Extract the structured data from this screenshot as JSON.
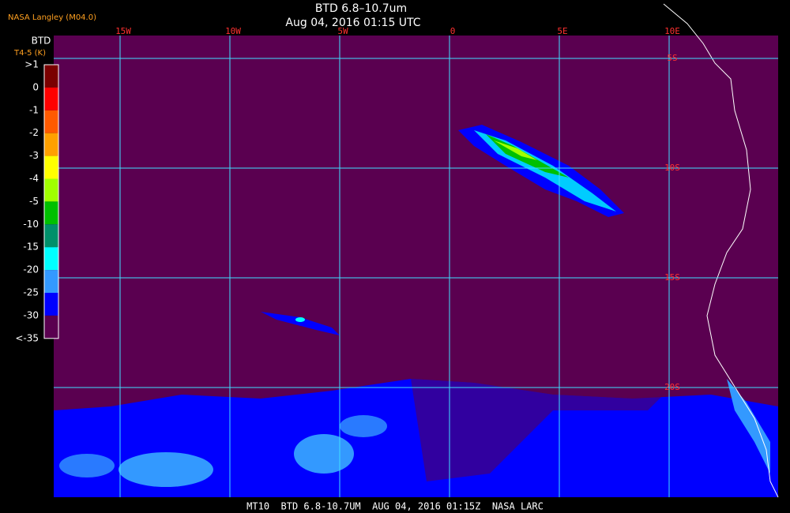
{
  "header": {
    "source": "NASA Langley (M04.0)",
    "title": "BTD 6.8–10.7um",
    "subtitle": "Aug 04, 2016 01:15 UTC"
  },
  "legend": {
    "title": "BTD",
    "subtitle": "T4-5 (K)",
    "labels": [
      ">1",
      "0",
      "-1",
      "-2",
      "-3",
      "-4",
      "-5",
      "-10",
      "-15",
      "-20",
      "-25",
      "-30",
      "<-35"
    ],
    "colors": [
      "#7a0000",
      "#ff0000",
      "#ff5a00",
      "#ffa000",
      "#ffff00",
      "#a0ff00",
      "#00c000",
      "#00906a",
      "#00ffff",
      "#3399ff",
      "#0000ff",
      "#5a0050"
    ]
  },
  "map": {
    "longitude_labels": [
      "15W",
      "10W",
      "5W",
      "0",
      "5E",
      "10E"
    ],
    "latitude_labels": [
      "5S",
      "10S",
      "15S",
      "20S"
    ]
  },
  "footer": {
    "text": "MT10  BTD 6.8-10.7UM  AUG 04, 2016 01:15Z  NASA LARC"
  }
}
